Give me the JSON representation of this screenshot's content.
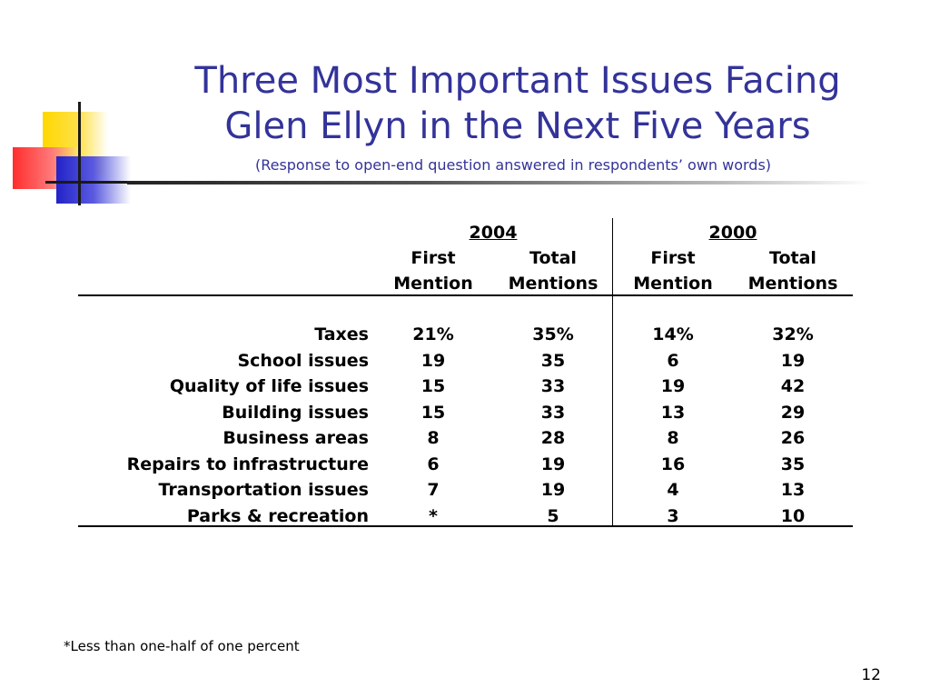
{
  "slide": {
    "title_line1": "Three Most Important Issues Facing",
    "title_line2": "Glen Ellyn in the Next Five Years",
    "subtitle": "(Response to open-end question answered in respondents’ own words)",
    "footnote": "*Less than one-half of one percent",
    "page_number": "12"
  },
  "table": {
    "years": [
      "2004",
      "2000"
    ],
    "subheaders_line1": [
      "First",
      "Total",
      "First",
      "Total"
    ],
    "subheaders_line2": [
      "Mention",
      "Mentions",
      "Mention",
      "Mentions"
    ],
    "rows": [
      {
        "label": "Taxes",
        "values": [
          "21%",
          "35%",
          "14%",
          "32%"
        ]
      },
      {
        "label": "School issues",
        "values": [
          "19",
          "35",
          "6",
          "19"
        ]
      },
      {
        "label": "Quality of life issues",
        "values": [
          "15",
          "33",
          "19",
          "42"
        ]
      },
      {
        "label": "Building issues",
        "values": [
          "15",
          "33",
          "13",
          "29"
        ]
      },
      {
        "label": "Business areas",
        "values": [
          "8",
          "28",
          "8",
          "26"
        ]
      },
      {
        "label": "Repairs to infrastructure",
        "values": [
          "6",
          "19",
          "16",
          "35"
        ]
      },
      {
        "label": "Transportation issues",
        "values": [
          "7",
          "19",
          "4",
          "13"
        ]
      },
      {
        "label": "Parks & recreation",
        "values": [
          "*",
          "5",
          "3",
          "10"
        ]
      }
    ]
  },
  "colors": {
    "title": "#33339a",
    "logo_yellow": "#ffd700",
    "logo_red": "#ff2d2d",
    "logo_blue": "#2323c8"
  }
}
